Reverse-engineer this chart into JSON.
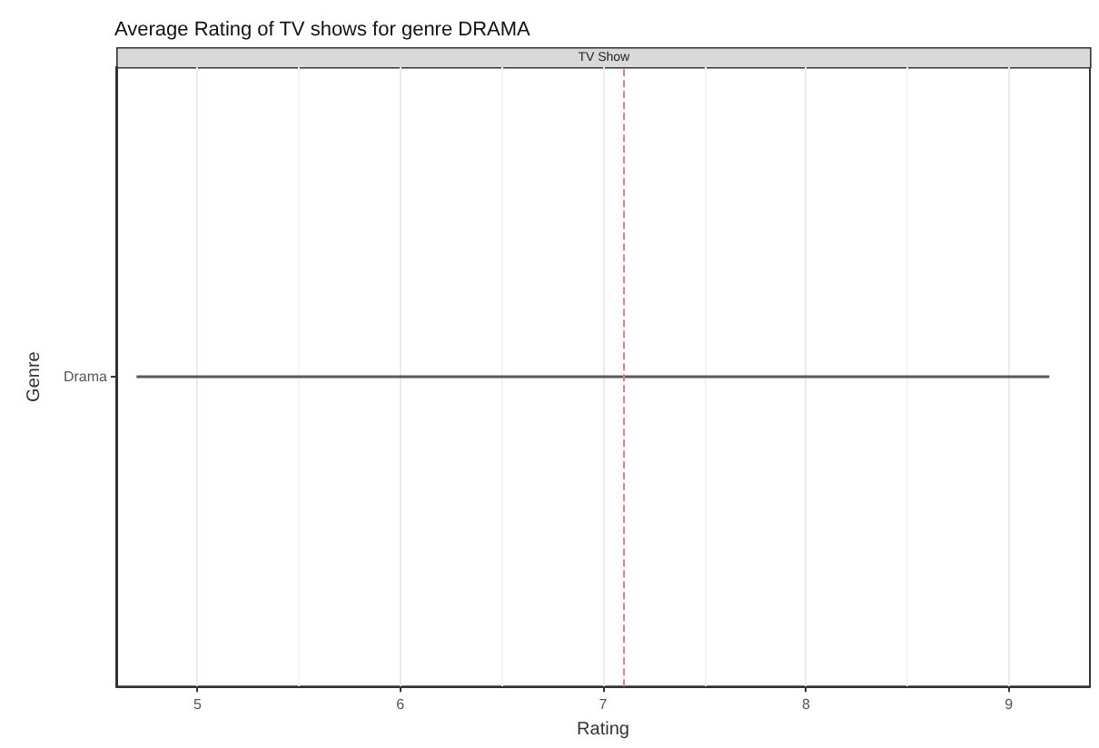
{
  "chart_data": {
    "type": "bar",
    "orientation": "horizontal",
    "title": "Average Rating of TV shows for genre DRAMA",
    "annotations": [
      "TV Show"
    ],
    "xlabel": "Rating",
    "ylabel": "Genre",
    "categories": [
      "Drama"
    ],
    "base": [
      4.7
    ],
    "values": [
      4.5
    ],
    "color": "#595959",
    "xlim": [
      4.6,
      9.4
    ],
    "xticks": [
      5,
      6,
      7,
      8,
      9
    ],
    "grid": "x",
    "ref_lines": [
      {
        "axis": "x",
        "value": 7.1,
        "color": "#e08080",
        "line_style": "dashed"
      }
    ]
  }
}
